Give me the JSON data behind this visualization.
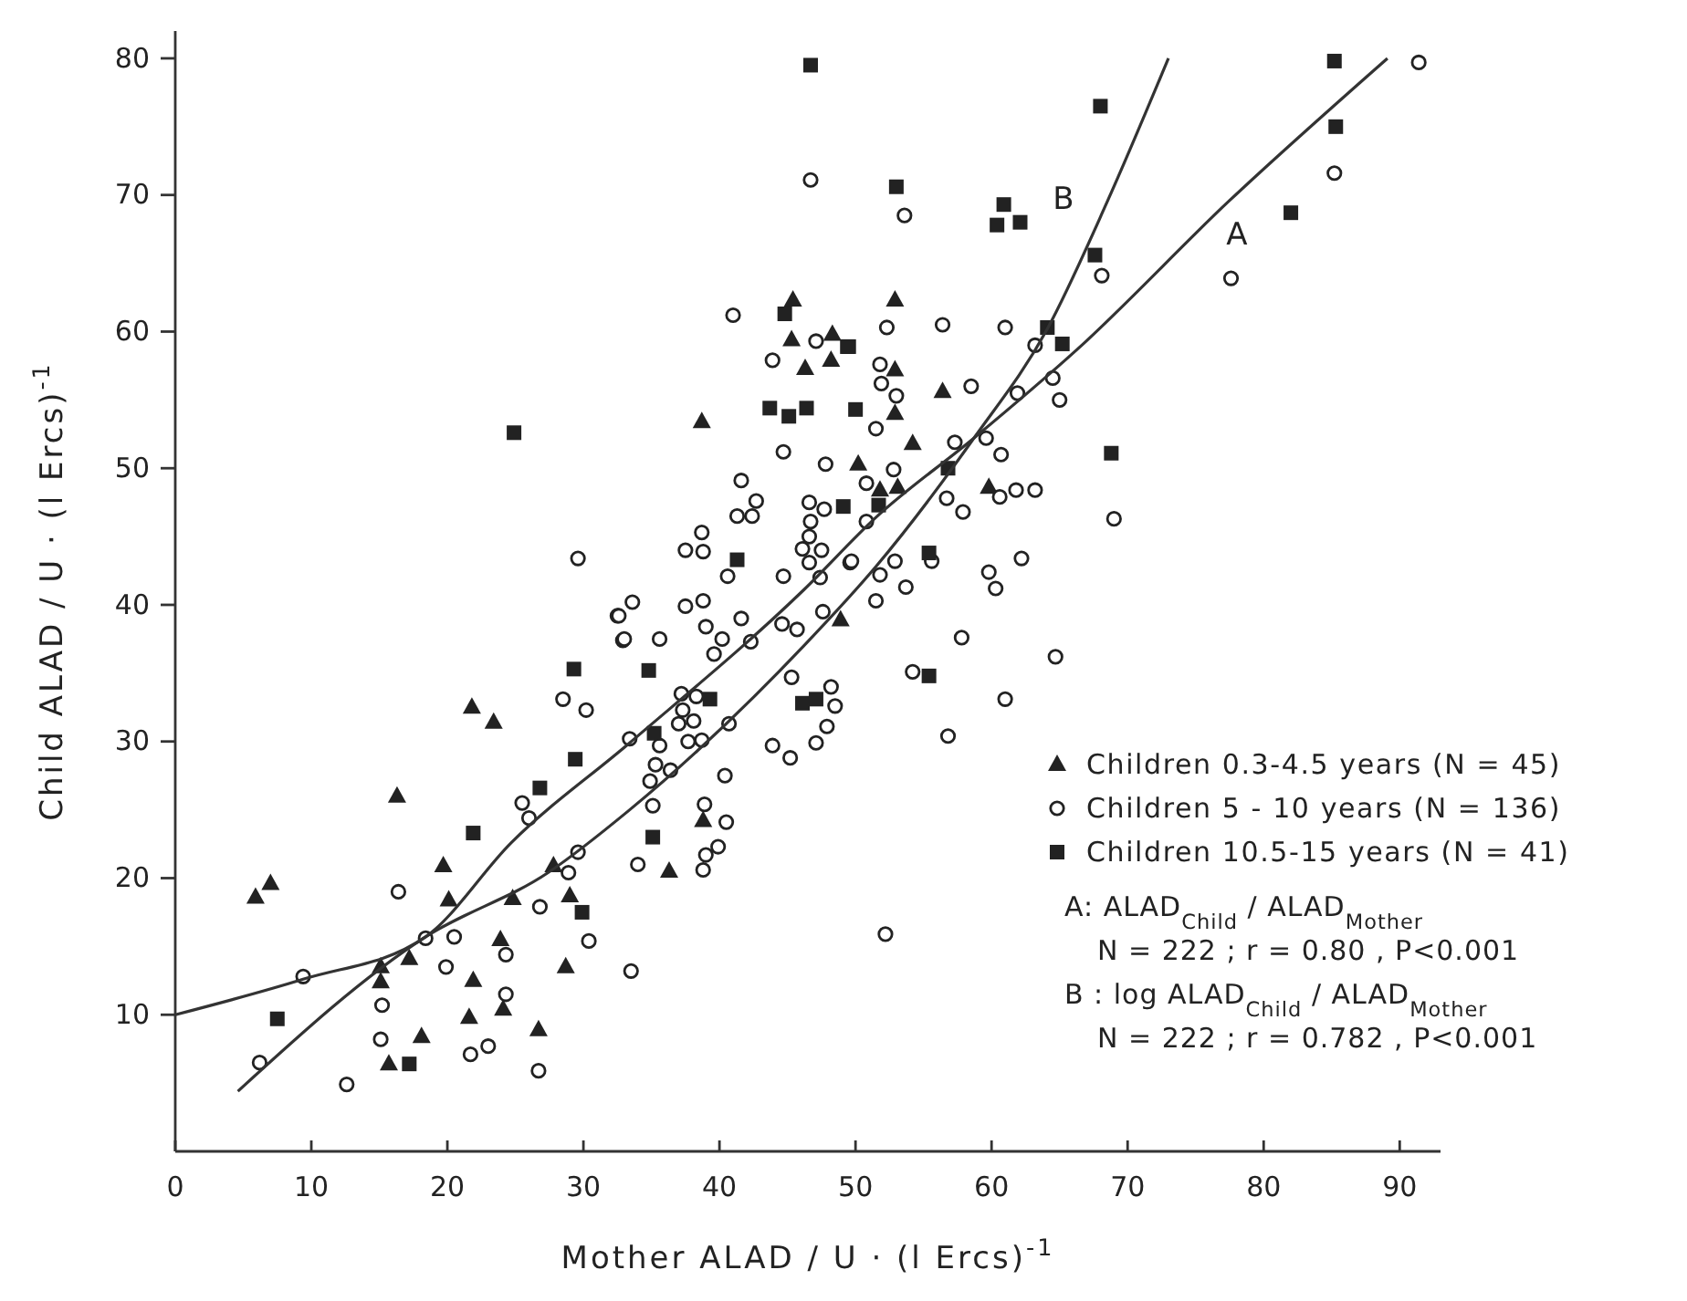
{
  "chart_data": {
    "type": "scatter",
    "xlabel": "Mother ALAD / U · (l Ercs)$^{-1}$",
    "ylabel": "Child ALAD / U · (l Ercs)$^{-1}$",
    "xlim": [
      0,
      93
    ],
    "ylim": [
      0,
      82
    ],
    "xticks": [
      0,
      10,
      20,
      30,
      40,
      50,
      60,
      70,
      80,
      90
    ],
    "yticks": [
      10,
      20,
      30,
      40,
      50,
      60,
      70,
      80
    ],
    "grid": false,
    "legend": "bottom right",
    "series": [
      {
        "name": "Children 0.3-4.5 years (N = 45)",
        "type": "scatter",
        "marker": "triangle",
        "color": "#222222",
        "x": [
          21.8,
          23.4,
          16.3,
          5.9,
          7.0,
          19.7,
          20.1,
          24.8,
          29.0,
          23.9,
          15.1,
          15.1,
          17.2,
          21.9,
          28.7,
          21.6,
          24.1,
          18.1,
          26.7,
          15.7,
          27.8,
          45.4,
          45.3,
          48.3,
          46.3,
          48.2,
          38.7,
          50.2,
          48.9,
          38.8,
          36.3,
          52.9,
          52.9,
          52.9,
          56.4,
          54.2,
          51.8,
          53.1,
          59.8
        ],
        "values": [
          32.5,
          31.4,
          26.0,
          18.6,
          19.6,
          20.9,
          18.4,
          18.5,
          18.7,
          15.5,
          13.5,
          12.4,
          14.1,
          12.5,
          13.5,
          9.8,
          10.4,
          8.4,
          8.9,
          6.4,
          20.9,
          62.3,
          59.4,
          59.8,
          57.3,
          57.9,
          53.4,
          50.3,
          38.9,
          24.2,
          20.5,
          62.3,
          57.2,
          54.0,
          55.6,
          51.8,
          48.4,
          48.6,
          48.6
        ]
      },
      {
        "name": "Children 5 - 10 years (N = 136)",
        "type": "scatter",
        "marker": "circle",
        "color": "#222222",
        "x": [
          32.5,
          32.9,
          28.5,
          30.2,
          25.5,
          26.0,
          16.4,
          26.8,
          33.4,
          29.6,
          28.9,
          20.5,
          18.4,
          24.3,
          30.4,
          19.9,
          9.4,
          15.2,
          24.3,
          15.1,
          21.7,
          23.0,
          26.7,
          6.2,
          12.6,
          41.0,
          43.9,
          44.7,
          47.8,
          41.6,
          42.7,
          41.3,
          42.4,
          46.6,
          47.7,
          46.7,
          46.6,
          50.8,
          50.8,
          29.6,
          38.7,
          37.5,
          38.8,
          46.1,
          47.5,
          46.6,
          40.6,
          44.7,
          47.4,
          49.6,
          33.6,
          32.6,
          37.5,
          38.8,
          41.6,
          44.6,
          45.7,
          47.6,
          33.0,
          35.6,
          39.0,
          40.2,
          39.6,
          42.3,
          45.3,
          37.2,
          38.3,
          37.3,
          37.0,
          38.1,
          40.7,
          48.2,
          48.5,
          47.9,
          35.6,
          37.7,
          38.7,
          43.9,
          45.2,
          47.1,
          35.3,
          36.4,
          34.9,
          40.4,
          35.1,
          38.9,
          40.5,
          39.9,
          39.0,
          34.0,
          38.8,
          91.4,
          85.2,
          46.7,
          53.6,
          68.1,
          77.6,
          52.3,
          56.4,
          61.0,
          47.1,
          63.2,
          51.8,
          51.9,
          53.0,
          58.5,
          64.5,
          65.0,
          61.9,
          51.5,
          57.3,
          59.6,
          60.7,
          52.8,
          61.8,
          63.2,
          60.6,
          56.7,
          57.9,
          69.0,
          49.7,
          52.9,
          51.8,
          53.7,
          51.5,
          55.6,
          62.2,
          59.8,
          60.3,
          57.8,
          64.7,
          54.2,
          61.0,
          56.8,
          52.2,
          33.5
        ],
        "values": [
          39.2,
          37.4,
          33.1,
          32.3,
          25.5,
          24.4,
          19.0,
          17.9,
          30.2,
          21.9,
          20.4,
          15.7,
          15.6,
          14.4,
          15.4,
          13.5,
          12.8,
          10.7,
          11.5,
          8.2,
          7.1,
          7.7,
          5.9,
          6.5,
          4.9,
          61.2,
          57.9,
          51.2,
          50.3,
          49.1,
          47.6,
          46.5,
          46.5,
          47.5,
          47.0,
          46.1,
          45.0,
          48.9,
          46.1,
          43.4,
          45.3,
          44.0,
          43.9,
          44.1,
          44.0,
          43.1,
          42.1,
          42.1,
          42.0,
          43.1,
          40.2,
          39.2,
          39.9,
          40.3,
          39.0,
          38.6,
          38.2,
          39.5,
          37.5,
          37.5,
          38.4,
          37.5,
          36.4,
          37.3,
          34.7,
          33.5,
          33.3,
          32.3,
          31.3,
          31.5,
          31.3,
          34.0,
          32.6,
          31.1,
          29.7,
          30.0,
          30.1,
          29.7,
          28.8,
          29.9,
          28.3,
          27.9,
          27.1,
          27.5,
          25.3,
          25.4,
          24.1,
          22.3,
          21.7,
          21.0,
          20.6,
          79.7,
          71.6,
          71.1,
          68.5,
          64.1,
          63.9,
          60.3,
          60.5,
          60.3,
          59.3,
          59.0,
          57.6,
          56.2,
          55.3,
          56.0,
          56.6,
          55.0,
          55.5,
          52.9,
          51.9,
          52.2,
          51.0,
          49.9,
          48.4,
          48.4,
          47.9,
          47.8,
          46.8,
          46.3,
          43.2,
          43.2,
          42.2,
          41.3,
          40.3,
          43.2,
          43.4,
          42.4,
          41.2,
          37.6,
          36.2,
          35.1,
          33.1,
          30.4,
          15.9,
          13.2
        ]
      },
      {
        "name": "Children 10.5-15 years (N = 41)",
        "type": "scatter",
        "marker": "square",
        "color": "#222222",
        "x": [
          29.3,
          29.4,
          26.8,
          21.9,
          29.9,
          7.5,
          17.2,
          44.8,
          49.5,
          43.7,
          45.1,
          46.4,
          50.0,
          24.9,
          49.1,
          41.3,
          34.8,
          39.3,
          46.1,
          47.1,
          35.2,
          35.1,
          46.7,
          85.2,
          68.0,
          85.3,
          53.0,
          60.9,
          60.4,
          62.1,
          82.0,
          67.6,
          64.1,
          65.2,
          49.4,
          68.8,
          51.7,
          55.4,
          55.4,
          56.8
        ],
        "values": [
          35.3,
          28.7,
          26.6,
          23.3,
          17.5,
          9.7,
          6.4,
          61.3,
          58.9,
          54.4,
          53.8,
          54.4,
          54.3,
          52.6,
          47.2,
          43.3,
          35.2,
          33.1,
          32.8,
          33.1,
          30.6,
          23.0,
          79.5,
          79.8,
          76.5,
          75.0,
          70.6,
          69.3,
          67.8,
          68.0,
          68.7,
          65.6,
          60.3,
          59.1,
          58.9,
          51.1,
          47.3,
          43.8,
          34.8,
          50.0
        ]
      },
      {
        "name": "A",
        "type": "line",
        "line_style": "solid",
        "marker": "none",
        "color": "#333333",
        "x": [
          0,
          9.4,
          18.4,
          24.7,
          33.4,
          46.2,
          51.5,
          58.7,
          66.3,
          77.5,
          89.1
        ],
        "values": [
          10.0,
          12.6,
          15.7,
          22.6,
          29.9,
          41.1,
          46.4,
          52.2,
          58.7,
          69.6,
          80.0
        ]
      },
      {
        "name": "B",
        "type": "line",
        "line_style": "solid",
        "marker": "none",
        "color": "#333333",
        "x": [
          4.6,
          18.4,
          27.4,
          33.4,
          46.2,
          51.5,
          58.7,
          64.1,
          68.5,
          73.0
        ],
        "values": [
          4.4,
          15.7,
          20.4,
          25.0,
          37.0,
          42.8,
          52.2,
          60.2,
          69.5,
          80.0
        ]
      }
    ],
    "annotations": [
      "A: ALAD$_{Child}$ / ALAD$_{Mother}$",
      "N = 222 ; r = 0.80 , P<0.001",
      "B : log ALAD$_{Child}$ / ALAD$_{Mother}$",
      "N = 222 ; r = 0.782 , P<0.001"
    ]
  }
}
